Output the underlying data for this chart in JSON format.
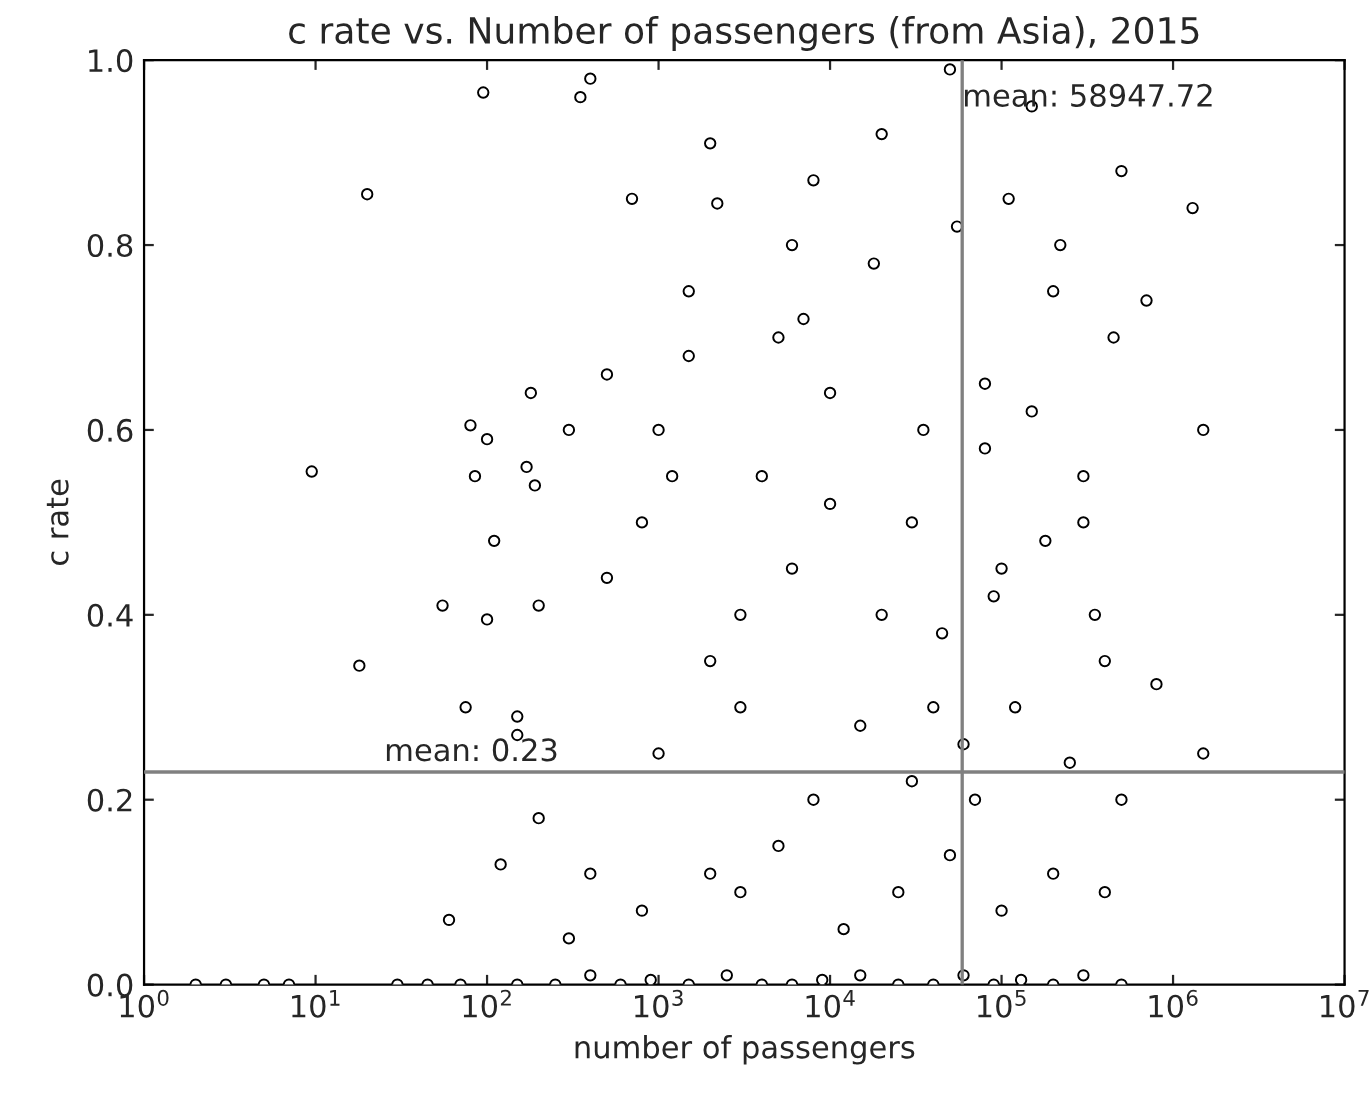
{
  "chart_data": {
    "type": "scatter",
    "title": "c rate vs. Number of passengers (from Asia), 2015",
    "xlabel": "number of passengers",
    "ylabel": "c rate",
    "log": "x",
    "xlim": [
      1,
      10000000
    ],
    "ylim": [
      0,
      1.0
    ],
    "xticks": [
      {
        "value": 1,
        "label": "10$^{0}$"
      },
      {
        "value": 10,
        "label": "10$^{1}$"
      },
      {
        "value": 100,
        "label": "10$^{2}$"
      },
      {
        "value": 1000,
        "label": "10$^{3}$"
      },
      {
        "value": 10000,
        "label": "10$^{4}$"
      },
      {
        "value": 100000,
        "label": "10$^{5}$"
      },
      {
        "value": 1000000,
        "label": "10$^{6}$"
      },
      {
        "value": 10000000,
        "label": "10$^{7}$"
      }
    ],
    "yticks": [
      {
        "value": 0,
        "label": "0.0"
      },
      0.2,
      0.4,
      0.6,
      0.8,
      {
        "value": 1.0,
        "label": "1.0"
      }
    ],
    "marker": "circle",
    "grid": false,
    "ref_lines": [
      {
        "axis": "x",
        "value": 58947.72,
        "label": "mean: 58947.72",
        "color": "#808080"
      },
      {
        "axis": "y",
        "value": 0.23,
        "label": "mean: 0.23",
        "color": "#808080"
      }
    ],
    "series": [
      {
        "color": "#000000",
        "x": [
          2,
          3,
          5,
          7,
          9.5,
          18,
          20,
          30,
          45,
          55,
          60,
          75,
          80,
          85,
          95,
          100,
          100,
          110,
          120,
          150,
          150,
          170,
          180,
          190,
          200,
          200,
          300,
          350,
          400,
          400,
          500,
          500,
          700,
          800,
          1000,
          1200,
          1500,
          2000,
          2200,
          3000,
          3000,
          5000,
          6000,
          8000,
          10000,
          20000,
          30000,
          40000,
          50000,
          70000,
          80000,
          100000,
          150000,
          200000,
          300000,
          400000,
          500000,
          700000,
          1300000,
          1500000,
          1500000,
          800000,
          70,
          150,
          250,
          400,
          600,
          900,
          1500,
          2500,
          4000,
          6000,
          9000,
          15000,
          25000,
          40000,
          60000,
          90000,
          130000,
          200000,
          300000,
          500000,
          300,
          800,
          2000,
          5000,
          12000,
          25000,
          50000,
          100000,
          200000,
          400000,
          1000,
          3000,
          8000,
          15000,
          30000,
          60000,
          120000,
          250000,
          500000,
          2000,
          6000,
          20000,
          45000,
          90000,
          180000,
          350000,
          4000,
          10000,
          35000,
          80000,
          150000,
          300000,
          1500,
          7000,
          18000,
          55000,
          110000,
          220000,
          450000
        ],
        "values": [
          0,
          0,
          0,
          0,
          0.555,
          0.345,
          0.855,
          0,
          0,
          0.41,
          0.07,
          0.3,
          0.605,
          0.55,
          0.965,
          0.59,
          0.395,
          0.48,
          0.13,
          0.29,
          0.27,
          0.56,
          0.64,
          0.54,
          0.41,
          0.18,
          0.6,
          0.96,
          0.98,
          0.12,
          0.44,
          0.66,
          0.85,
          0.5,
          0.6,
          0.55,
          0.75,
          0.91,
          0.845,
          0.4,
          0.1,
          0.7,
          0.8,
          0.87,
          0.64,
          0.92,
          0.5,
          0.3,
          0.99,
          0.2,
          0.65,
          0.45,
          0.95,
          0.75,
          0.55,
          0.35,
          0.88,
          0.74,
          0.84,
          0.6,
          0.25,
          0.325,
          0.0,
          0.0,
          0.0,
          0.01,
          0.0,
          0.005,
          0.0,
          0.01,
          0.0,
          0.0,
          0.005,
          0.01,
          0.0,
          0.0,
          0.01,
          0.0,
          0.005,
          0.0,
          0.01,
          0.0,
          0.05,
          0.08,
          0.12,
          0.15,
          0.06,
          0.1,
          0.14,
          0.08,
          0.12,
          0.1,
          0.25,
          0.3,
          0.2,
          0.28,
          0.22,
          0.26,
          0.3,
          0.24,
          0.2,
          0.35,
          0.45,
          0.4,
          0.38,
          0.42,
          0.48,
          0.4,
          0.55,
          0.52,
          0.6,
          0.58,
          0.62,
          0.5,
          0.68,
          0.72,
          0.78,
          0.82,
          0.85,
          0.8,
          0.7
        ]
      }
    ]
  }
}
